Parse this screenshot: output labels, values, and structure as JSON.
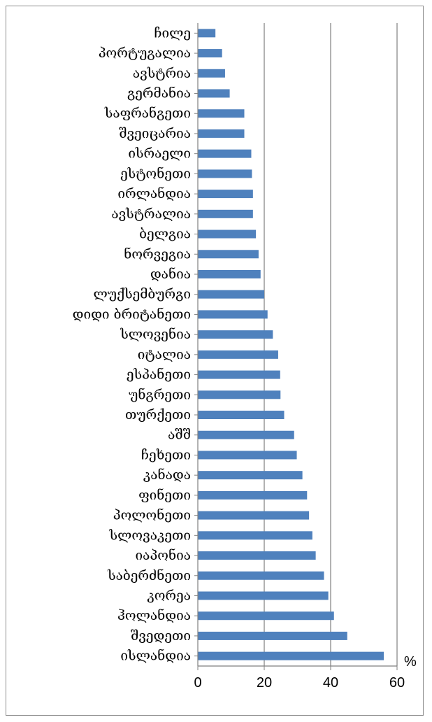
{
  "chart_data": {
    "type": "bar",
    "orientation": "horizontal",
    "categories": [
      "ჩილე",
      "პორტუგალია",
      "ავსტრია",
      "გერმანია",
      "საფრანგეთი",
      "შვეიცარია",
      "ისრაელი",
      "ესტონეთი",
      "ირლანდია",
      "ავსტრალია",
      "ბელგია",
      "ნორვეგია",
      "დანია",
      "ლუქსემბურგი",
      "დიდი ბრიტანეთი",
      "სლოვენია",
      "იტალია",
      "ესპანეთი",
      "უნგრეთი",
      "თურქეთი",
      "აშშ",
      "ჩეხეთი",
      "კანადა",
      "ფინეთი",
      "პოლონეთი",
      "სლოვაკეთი",
      "იაპონია",
      "საბერძნეთი",
      "კორეა",
      "ჰოლანდია",
      "შვედეთი",
      "ისლანდია"
    ],
    "values": [
      5.3,
      7.3,
      8.2,
      9.6,
      14.0,
      14.0,
      16.1,
      16.3,
      16.6,
      16.6,
      17.5,
      18.3,
      18.9,
      20.0,
      21.0,
      22.6,
      24.2,
      24.8,
      24.9,
      26.0,
      29.0,
      29.8,
      31.5,
      32.9,
      33.5,
      34.5,
      35.5,
      38.0,
      39.3,
      41.0,
      45.0,
      56.0
    ],
    "xlim": [
      0,
      60
    ],
    "ticks": [
      "0",
      "20",
      "40",
      "60"
    ],
    "unit": "%",
    "grid": true,
    "colors": {
      "bar": "#4f81bd",
      "grid": "#7f7f7f",
      "axis": "#7f7f7f"
    }
  }
}
